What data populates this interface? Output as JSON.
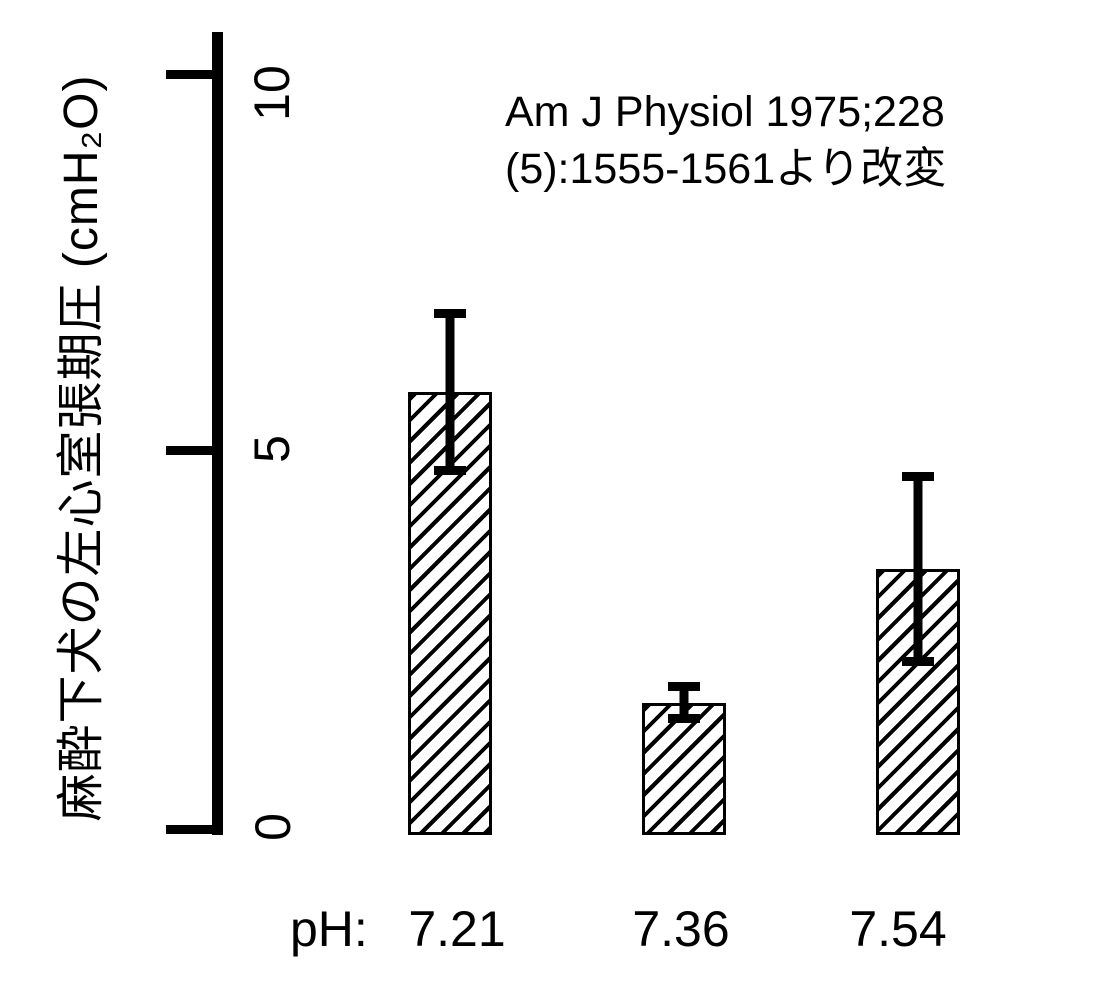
{
  "figure": {
    "background_color": "#ffffff",
    "foreground_color": "#000000"
  },
  "y_axis": {
    "label": "麻酔下犬の左心室張期圧 (cmH₂O)",
    "ticks": [
      "10",
      "5",
      "0"
    ]
  },
  "x_axis": {
    "prefix": "pH:",
    "labels": [
      "7.21",
      "7.36",
      "7.54"
    ]
  },
  "annotation": {
    "line1": "Am J Physiol 1975;228",
    "line2": "(5):1555-1561より改変"
  },
  "chart_data": {
    "type": "bar",
    "title": "",
    "categories": [
      "pH 7.21",
      "pH 7.36",
      "pH 7.54"
    ],
    "values": [
      5.8,
      1.68,
      3.45
    ],
    "errors": [
      1.1,
      0.27,
      1.28
    ],
    "ylabel": "麻酔下犬の左心室張期圧 (cmH₂O)",
    "yticks": [
      0,
      5,
      10
    ],
    "ylim": [
      0,
      10.6
    ],
    "grid": false,
    "legend": "none",
    "bar_fill": "black diagonal hatch (/) on white",
    "error_bars": "symmetric, capped",
    "source_note": "Am J Physiol 1975;228(5):1555-1561より改変"
  }
}
